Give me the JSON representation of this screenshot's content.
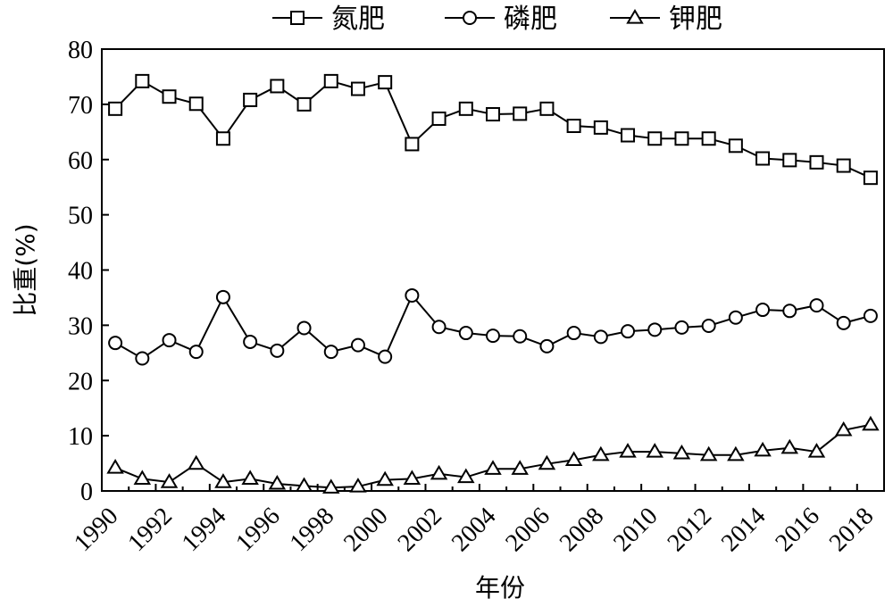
{
  "chart_data": {
    "type": "line",
    "xlabel": "年份",
    "ylabel": "比重(%)",
    "ylim": [
      0,
      80
    ],
    "xlim": [
      1990,
      2019
    ],
    "y_ticks": [
      "0",
      "10",
      "20",
      "30",
      "40",
      "50",
      "60",
      "70",
      "80"
    ],
    "x_ticks": [
      "1990",
      "1992",
      "1994",
      "1996",
      "1998",
      "2000",
      "2002",
      "2004",
      "2006",
      "2008",
      "2010",
      "2012",
      "2014",
      "2016",
      "2018"
    ],
    "legend_position": "top-center",
    "grid": false,
    "x": [
      1990.5,
      1991.5,
      1992.5,
      1993.5,
      1994.5,
      1995.5,
      1996.5,
      1997.5,
      1998.5,
      1999.5,
      2000.5,
      2001.5,
      2002.5,
      2003.5,
      2004.5,
      2005.5,
      2006.5,
      2007.5,
      2008.5,
      2009.5,
      2010.5,
      2011.5,
      2012.5,
      2013.5,
      2014.5,
      2015.5,
      2016.5,
      2017.5,
      2018.5
    ],
    "series": [
      {
        "name": "氮肥",
        "marker": "square",
        "values": [
          69.2,
          74.2,
          71.4,
          70.1,
          63.8,
          70.8,
          73.3,
          70.0,
          74.2,
          72.8,
          74.0,
          62.8,
          67.4,
          69.2,
          68.2,
          68.3,
          69.2,
          66.1,
          65.8,
          64.4,
          63.8,
          63.8,
          63.8,
          62.5,
          60.2,
          59.9,
          59.5,
          58.9,
          56.7
        ]
      },
      {
        "name": "磷肥",
        "marker": "circle",
        "values": [
          26.8,
          24.0,
          27.3,
          25.2,
          35.1,
          27.0,
          25.4,
          29.5,
          25.2,
          26.4,
          24.3,
          35.4,
          29.7,
          28.6,
          28.1,
          28.0,
          26.2,
          28.6,
          27.9,
          28.9,
          29.2,
          29.6,
          29.9,
          31.4,
          32.8,
          32.6,
          33.6,
          30.4,
          31.7
        ]
      },
      {
        "name": "钾肥",
        "marker": "triangle",
        "values": [
          4.2,
          2.2,
          1.6,
          4.9,
          1.6,
          2.2,
          1.3,
          0.9,
          0.6,
          0.8,
          2.0,
          2.2,
          3.1,
          2.5,
          4.0,
          4.0,
          4.9,
          5.6,
          6.5,
          7.1,
          7.1,
          6.8,
          6.5,
          6.5,
          7.3,
          7.8,
          7.1,
          11.0,
          12.0
        ]
      }
    ]
  }
}
